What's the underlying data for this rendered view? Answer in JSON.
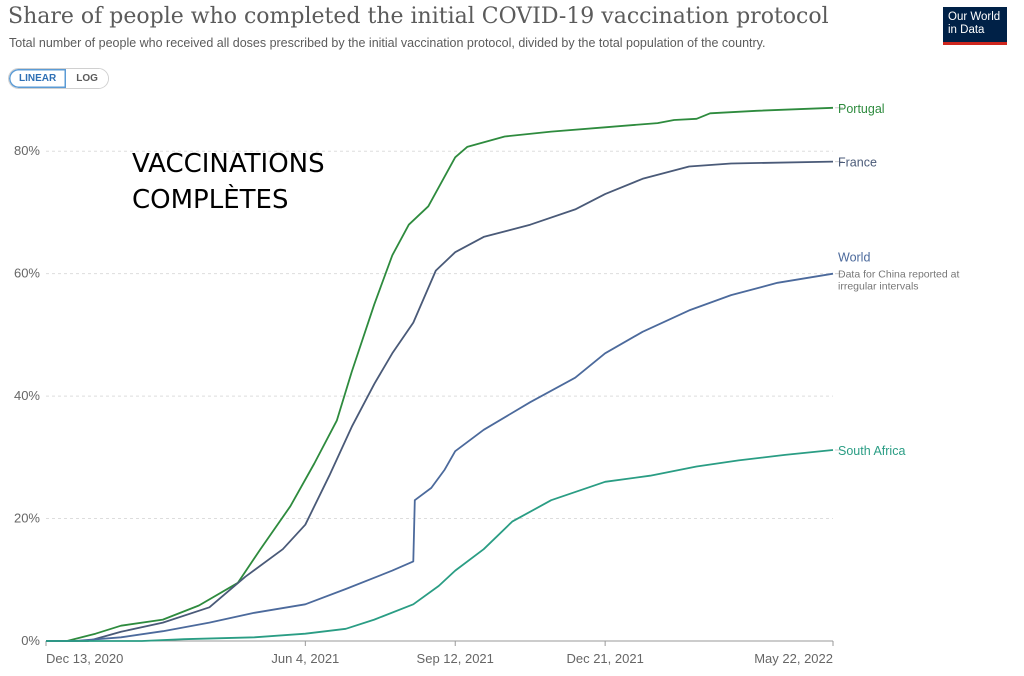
{
  "header": {
    "title": "Share of people who completed the initial COVID-19 vaccination protocol",
    "subtitle": "Total number of people who received all doses prescribed by the initial vaccination protocol, divided by the total population of the country.",
    "logo_line1": "Our World",
    "logo_line2": "in Data"
  },
  "controls": {
    "linear_label": "LINEAR",
    "log_label": "LOG"
  },
  "overlay": {
    "text": "VACCINATIONS\nCOMPLÈTES"
  },
  "chart_data": {
    "type": "line",
    "title": "Share of people who completed the initial COVID-19 vaccination protocol",
    "subtitle": "Total number of people who received all doses prescribed by the initial vaccination protocol, divided by the total population of the country.",
    "xlabel": "",
    "ylabel": "",
    "xlim": [
      "2020-12-13",
      "2022-05-22"
    ],
    "ylim": [
      0,
      90
    ],
    "y_ticks": [
      0,
      20,
      40,
      60,
      80
    ],
    "y_tick_labels": [
      "0%",
      "20%",
      "40%",
      "60%",
      "80%"
    ],
    "x_ticks": [
      "2020-12-13",
      "2021-06-04",
      "2021-09-12",
      "2021-12-21",
      "2022-05-22"
    ],
    "x_tick_labels": [
      "Dec 13, 2020",
      "Jun 4, 2021",
      "Sep 12, 2021",
      "Dec 21, 2021",
      "May 22, 2022"
    ],
    "grid": "horizontal",
    "legend": "line-end labels",
    "series": [
      {
        "name": "Portugal",
        "color": "#2e8b3e",
        "points": [
          [
            "2020-12-13",
            0
          ],
          [
            "2020-12-27",
            0
          ],
          [
            "2021-01-15",
            1.2
          ],
          [
            "2021-02-01",
            2.5
          ],
          [
            "2021-03-01",
            3.5
          ],
          [
            "2021-03-25",
            5.8
          ],
          [
            "2021-04-20",
            9.5
          ],
          [
            "2021-05-05",
            15
          ],
          [
            "2021-05-25",
            22
          ],
          [
            "2021-06-10",
            29
          ],
          [
            "2021-06-25",
            36
          ],
          [
            "2021-07-05",
            44
          ],
          [
            "2021-07-20",
            55
          ],
          [
            "2021-08-01",
            63
          ],
          [
            "2021-08-12",
            68
          ],
          [
            "2021-08-25",
            71
          ],
          [
            "2021-09-12",
            79
          ],
          [
            "2021-09-20",
            80.7
          ],
          [
            "2021-10-15",
            82.4
          ],
          [
            "2021-11-15",
            83.2
          ],
          [
            "2021-12-21",
            83.9
          ],
          [
            "2022-01-25",
            84.6
          ],
          [
            "2022-02-05",
            85.1
          ],
          [
            "2022-02-20",
            85.3
          ],
          [
            "2022-03-01",
            86.2
          ],
          [
            "2022-04-01",
            86.6
          ],
          [
            "2022-05-22",
            87.1
          ]
        ]
      },
      {
        "name": "France",
        "color": "#4a5a78",
        "points": [
          [
            "2020-12-13",
            0
          ],
          [
            "2021-01-10",
            0
          ],
          [
            "2021-02-01",
            1.5
          ],
          [
            "2021-03-01",
            3
          ],
          [
            "2021-04-01",
            5.5
          ],
          [
            "2021-04-25",
            10.5
          ],
          [
            "2021-05-20",
            15
          ],
          [
            "2021-06-04",
            19
          ],
          [
            "2021-06-20",
            27
          ],
          [
            "2021-07-05",
            35
          ],
          [
            "2021-07-20",
            42
          ],
          [
            "2021-08-01",
            47
          ],
          [
            "2021-08-15",
            52
          ],
          [
            "2021-08-30",
            60.5
          ],
          [
            "2021-09-12",
            63.5
          ],
          [
            "2021-10-01",
            66
          ],
          [
            "2021-11-01",
            68
          ],
          [
            "2021-12-01",
            70.5
          ],
          [
            "2021-12-21",
            73
          ],
          [
            "2022-01-15",
            75.5
          ],
          [
            "2022-02-15",
            77.5
          ],
          [
            "2022-03-15",
            78
          ],
          [
            "2022-05-22",
            78.3
          ]
        ]
      },
      {
        "name": "World",
        "color": "#4c6a9c",
        "annotation": "Data for China reported at irregular intervals",
        "points": [
          [
            "2020-12-13",
            0
          ],
          [
            "2021-01-01",
            0
          ],
          [
            "2021-02-01",
            0.6
          ],
          [
            "2021-03-01",
            1.6
          ],
          [
            "2021-04-01",
            3
          ],
          [
            "2021-05-01",
            4.6
          ],
          [
            "2021-06-04",
            6
          ],
          [
            "2021-07-01",
            8.5
          ],
          [
            "2021-08-01",
            11.5
          ],
          [
            "2021-08-15",
            13
          ],
          [
            "2021-08-16",
            23
          ],
          [
            "2021-08-27",
            25
          ],
          [
            "2021-09-05",
            28
          ],
          [
            "2021-09-12",
            31
          ],
          [
            "2021-10-01",
            34.5
          ],
          [
            "2021-11-01",
            39
          ],
          [
            "2021-12-01",
            43
          ],
          [
            "2021-12-21",
            47
          ],
          [
            "2022-01-15",
            50.5
          ],
          [
            "2022-02-15",
            54
          ],
          [
            "2022-03-15",
            56.5
          ],
          [
            "2022-04-15",
            58.5
          ],
          [
            "2022-05-22",
            60
          ]
        ]
      },
      {
        "name": "South Africa",
        "color": "#2a9d84",
        "points": [
          [
            "2020-12-13",
            0
          ],
          [
            "2021-02-15",
            0
          ],
          [
            "2021-03-15",
            0.3
          ],
          [
            "2021-05-01",
            0.6
          ],
          [
            "2021-06-04",
            1.2
          ],
          [
            "2021-07-01",
            2
          ],
          [
            "2021-07-20",
            3.5
          ],
          [
            "2021-08-15",
            6
          ],
          [
            "2021-09-01",
            9
          ],
          [
            "2021-09-12",
            11.5
          ],
          [
            "2021-10-01",
            15
          ],
          [
            "2021-10-20",
            19.5
          ],
          [
            "2021-11-15",
            23
          ],
          [
            "2021-12-21",
            26
          ],
          [
            "2022-01-20",
            27
          ],
          [
            "2022-02-20",
            28.5
          ],
          [
            "2022-03-20",
            29.5
          ],
          [
            "2022-04-20",
            30.4
          ],
          [
            "2022-05-22",
            31.2
          ]
        ]
      }
    ]
  }
}
